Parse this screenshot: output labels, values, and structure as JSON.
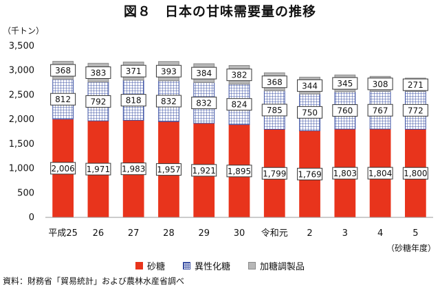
{
  "title": "図８　日本の甘味需要量の推移",
  "unit_label": "（千トン）",
  "x_unit_label": "（砂糖年度）",
  "source": "資料：財務省「貿易統計」および農林水産省調べ",
  "colors": {
    "sugar": "#e8341c",
    "isomerized": "#3a4fa3",
    "processed": "#b7b7b7"
  },
  "chart_data": {
    "type": "bar",
    "stacked": true,
    "categories": [
      "平成25",
      "26",
      "27",
      "28",
      "29",
      "30",
      "令和元",
      "2",
      "3",
      "4",
      "5"
    ],
    "series": [
      {
        "name": "砂糖",
        "values": [
          2006,
          1971,
          1983,
          1957,
          1921,
          1895,
          1799,
          1769,
          1803,
          1804,
          1800
        ]
      },
      {
        "name": "異性化糖",
        "values": [
          812,
          792,
          818,
          832,
          832,
          824,
          785,
          750,
          760,
          767,
          772
        ]
      },
      {
        "name": "加糖調製品",
        "values": [
          368,
          383,
          371,
          393,
          384,
          382,
          368,
          344,
          345,
          308,
          271
        ]
      }
    ],
    "ylim": [
      0,
      3500
    ],
    "yticks": [
      "0",
      "500",
      "1,000",
      "1,500",
      "2,000",
      "2,500",
      "3,000",
      "3,500"
    ],
    "grid": false,
    "legend_position": "bottom"
  }
}
